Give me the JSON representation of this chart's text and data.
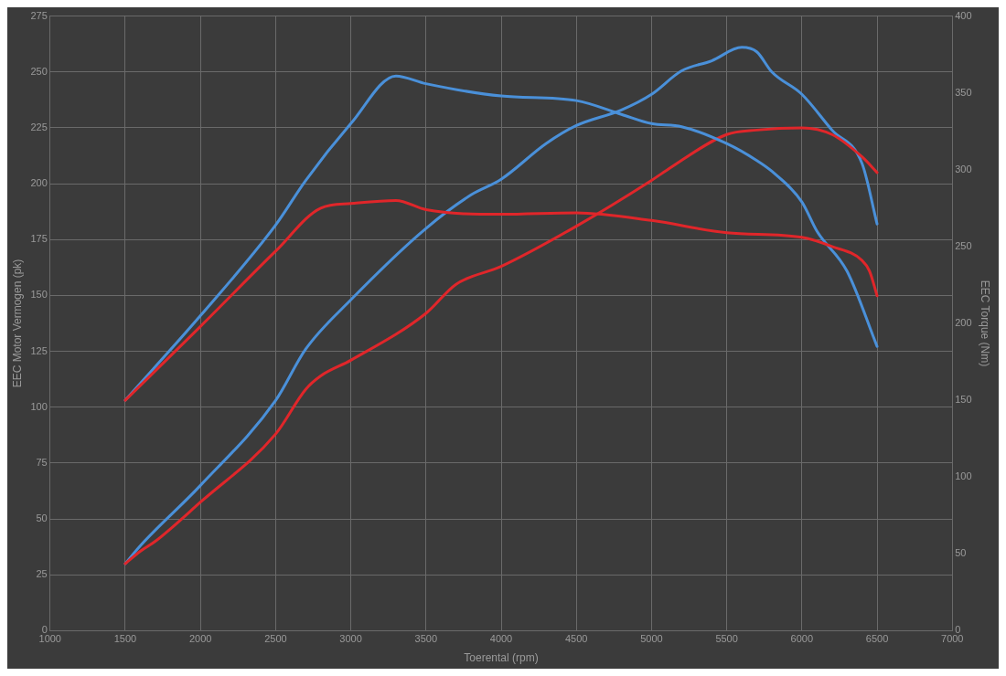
{
  "chart_data": {
    "type": "line",
    "xlabel": "Toerental (rpm)",
    "ylabel": "EEC Motor Vermogen (pk)",
    "y2label": "EEC Torque (Nm)",
    "xlim": [
      1000,
      7000
    ],
    "xticks": [
      1000,
      1500,
      2000,
      2500,
      3000,
      3500,
      4000,
      4500,
      5000,
      5500,
      6000,
      6500,
      7000
    ],
    "ylim": [
      0,
      275
    ],
    "yticks": [
      0,
      25,
      50,
      75,
      100,
      125,
      150,
      175,
      200,
      225,
      250,
      275
    ],
    "y2lim": [
      0,
      400
    ],
    "y2ticks": [
      0,
      50,
      100,
      150,
      200,
      250,
      300,
      350,
      400
    ],
    "grid": true,
    "legend": false,
    "marker": "none",
    "line_style": "solid",
    "series": [
      {
        "color": "#e0262a",
        "axis": "y2",
        "x": [
          1500,
          2000,
          2500,
          2800,
          3000,
          3300,
          3500,
          4000,
          4500,
          5000,
          5500,
          6000,
          6200,
          6400,
          6450,
          6500
        ],
        "values": [
          150,
          198,
          247,
          275,
          278,
          280,
          274,
          271,
          272,
          267,
          259,
          256,
          250,
          241,
          234,
          218
        ]
      },
      {
        "color": "#4a90d9",
        "axis": "y2",
        "x": [
          1500,
          2000,
          2500,
          2700,
          3000,
          3300,
          3500,
          4000,
          4500,
          4800,
          5000,
          5200,
          5500,
          5700,
          5800,
          6000,
          6100,
          6300,
          6500
        ],
        "values": [
          150,
          205,
          264,
          293,
          330,
          361,
          356,
          348,
          345,
          336,
          330,
          328,
          317,
          306,
          299,
          279,
          260,
          234,
          185
        ]
      },
      {
        "color": "#e0262a",
        "x": [
          1500,
          1600,
          1700,
          2000,
          2500,
          2700,
          2800,
          3000,
          3500,
          3700,
          4000,
          4500,
          5000,
          5100,
          5500,
          5700,
          6000,
          6200,
          6400,
          6500
        ],
        "values": [
          30,
          35.5,
          40,
          57.5,
          88,
          108,
          114,
          121,
          142,
          155,
          163,
          181,
          201.5,
          206,
          222,
          224,
          225,
          222,
          212,
          205
        ]
      },
      {
        "color": "#4a90d9",
        "x": [
          1500,
          1600,
          2000,
          2500,
          2700,
          3000,
          3500,
          3800,
          4000,
          4300,
          4500,
          4800,
          5000,
          5200,
          5400,
          5600,
          5700,
          5800,
          6000,
          6200,
          6400,
          6500
        ],
        "values": [
          30,
          38,
          65,
          103,
          126,
          148,
          180,
          195,
          202,
          218,
          226,
          233,
          240,
          250.5,
          255,
          261,
          259,
          250,
          240,
          224,
          209,
          182
        ]
      }
    ]
  }
}
